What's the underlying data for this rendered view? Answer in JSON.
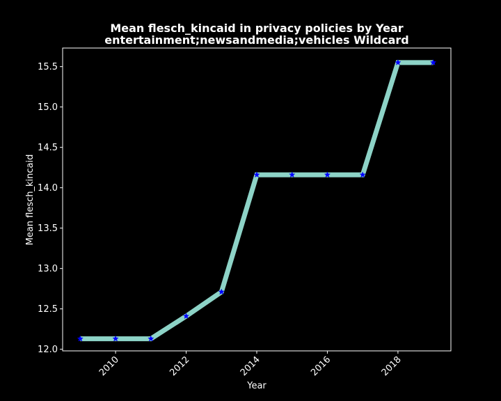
{
  "chart_data": {
    "type": "line",
    "title_line1": "Mean flesch_kincaid in privacy policies by Year",
    "title_line2": "entertainment;newsandmedia;vehicles Wildcard",
    "xlabel": "Year",
    "ylabel": "Mean flesch_kincaid",
    "x": [
      2009,
      2010,
      2011,
      2012,
      2013,
      2014,
      2015,
      2016,
      2017,
      2018,
      2019
    ],
    "values": [
      12.13,
      12.13,
      12.13,
      12.41,
      12.71,
      14.16,
      14.16,
      14.16,
      14.16,
      15.55,
      15.55
    ],
    "xlim": [
      2008.5,
      2019.5
    ],
    "ylim": [
      11.98,
      15.73
    ],
    "xticks": [
      2010,
      2012,
      2014,
      2016,
      2018
    ],
    "xtick_labels": [
      "2010",
      "2012",
      "2014",
      "2016",
      "2018"
    ],
    "yticks": [
      12.0,
      12.5,
      13.0,
      13.5,
      14.0,
      14.5,
      15.0,
      15.5
    ],
    "ytick_labels": [
      "12.0",
      "12.5",
      "13.0",
      "13.5",
      "14.0",
      "14.5",
      "15.0",
      "15.5"
    ],
    "grid": false,
    "line_color": "#8dd3c7",
    "marker_color": "#0000ff",
    "marker": "star",
    "background": "#000000",
    "foreground": "#ffffff"
  }
}
